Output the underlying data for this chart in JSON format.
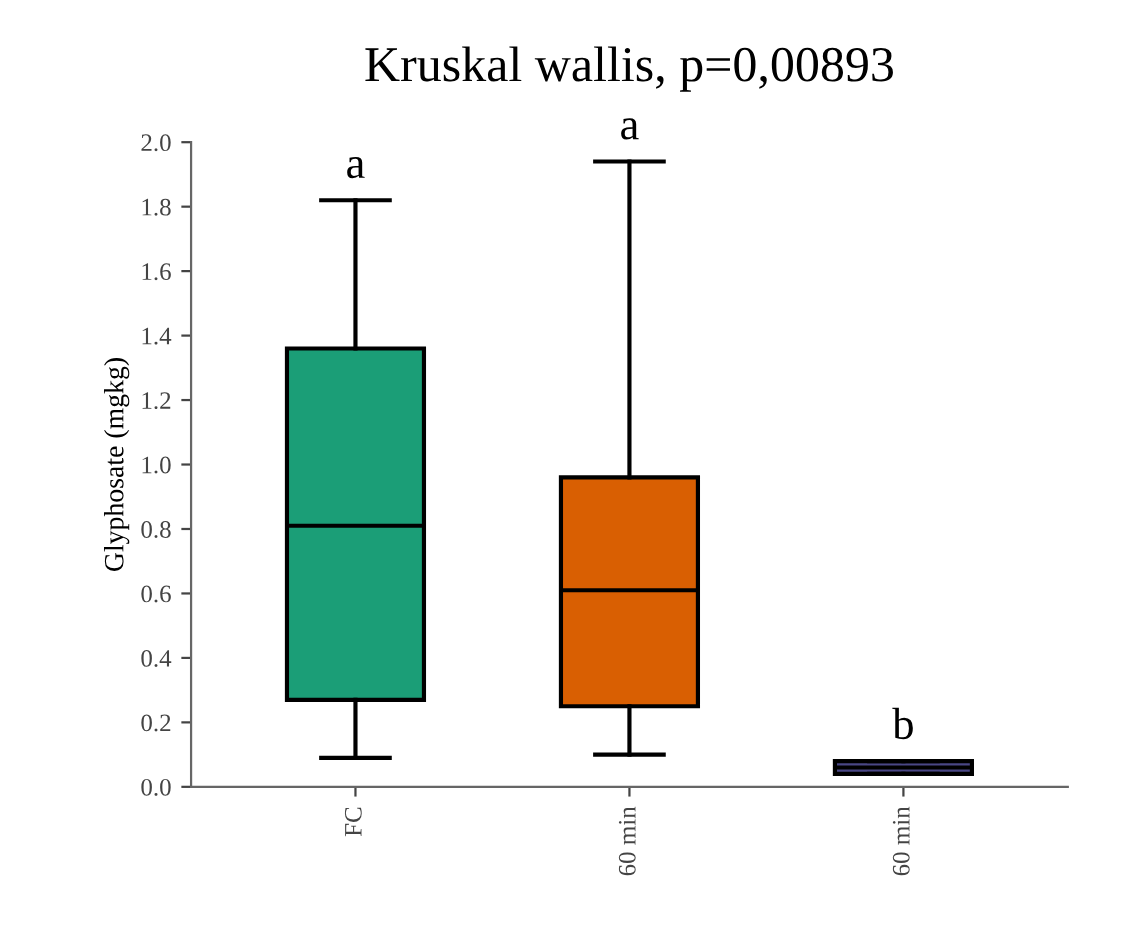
{
  "chart_data": {
    "type": "box",
    "title": "Kruskal wallis, p=0,00893",
    "ylabel": "Glyphosate (mgkg)",
    "categories": [
      "FC",
      "60 min",
      "60 min"
    ],
    "colors": [
      "#1b9e77",
      "#d95f02",
      "#4a4785"
    ],
    "boxes": [
      {
        "low": 0.09,
        "q1": 0.27,
        "median": 0.81,
        "q3": 1.36,
        "high": 1.82
      },
      {
        "low": 0.1,
        "q1": 0.25,
        "median": 0.61,
        "q3": 0.96,
        "high": 1.94
      },
      {
        "low": 0.04,
        "q1": 0.04,
        "median": 0.06,
        "q3": 0.08,
        "high": 0.08
      }
    ],
    "annotations": [
      "a",
      "a",
      "b"
    ],
    "ylim": [
      0,
      2
    ],
    "yticks": [
      {
        "value": 0,
        "label": "0.0"
      },
      {
        "value": 0.2,
        "label": "0.2"
      },
      {
        "value": 0.4,
        "label": "0.4"
      },
      {
        "value": 0.6,
        "label": "0.6"
      },
      {
        "value": 0.8,
        "label": "0.8"
      },
      {
        "value": 1,
        "label": "1.0"
      },
      {
        "value": 1.2,
        "label": "1.2"
      },
      {
        "value": 1.4,
        "label": "1.4"
      },
      {
        "value": 1.6,
        "label": "1.6"
      },
      {
        "value": 1.8,
        "label": "1.8"
      },
      {
        "value": 2,
        "label": "2.0"
      }
    ],
    "grid": false,
    "legend": false
  }
}
